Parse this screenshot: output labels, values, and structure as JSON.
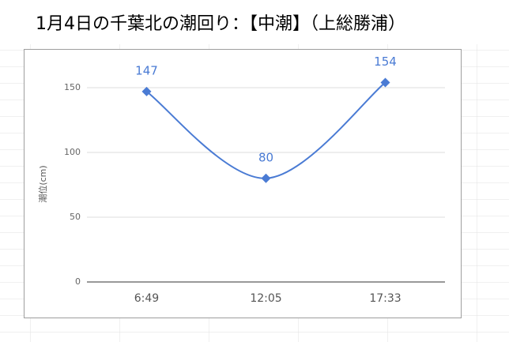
{
  "chart_data": {
    "type": "line",
    "title": "1月4日の千葉北の潮回り：【中潮】（上総勝浦）",
    "y_label": "潮位(cm)",
    "categories": [
      "6:49",
      "12:05",
      "17:33"
    ],
    "series": [
      {
        "name": "潮位",
        "color": "#4a7bd4",
        "values": [
          147,
          80,
          154
        ]
      }
    ],
    "ylim": [
      0,
      160
    ],
    "yticks": [
      0,
      50,
      100,
      150
    ],
    "grid": true
  }
}
